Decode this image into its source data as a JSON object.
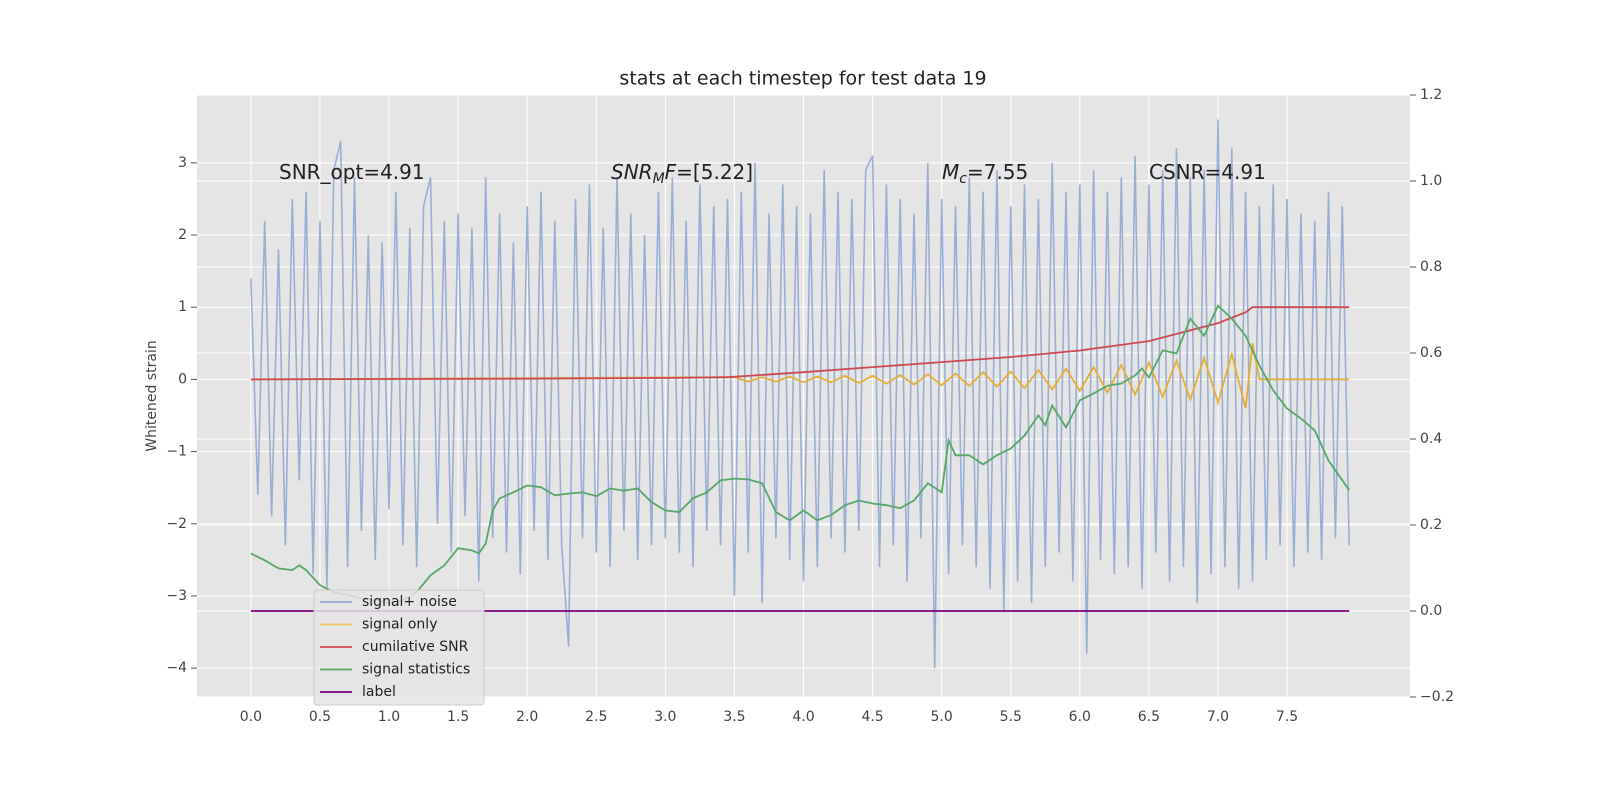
{
  "chart_data": {
    "type": "line",
    "title": "stats at each timestep for test data 19",
    "ylabel": "Whitened strain",
    "xlim": [
      -0.39,
      8.39
    ],
    "ylim": [
      -4.4,
      3.94
    ],
    "y2lim": [
      -0.2,
      1.2
    ],
    "xticks": [
      {
        "value": 0,
        "label": "0.0"
      },
      0.5,
      {
        "value": 1,
        "label": "1.0"
      },
      1.5,
      {
        "value": 2,
        "label": "2.0"
      },
      2.5,
      {
        "value": 3,
        "label": "3.0"
      },
      3.5,
      {
        "value": 4,
        "label": "4.0"
      },
      4.5,
      {
        "value": 5,
        "label": "5.0"
      },
      5.5,
      {
        "value": 6,
        "label": "6.0"
      },
      6.5,
      {
        "value": 7,
        "label": "7.0"
      },
      7.5
    ],
    "yticks": [
      {
        "value": -4,
        "label": "−4"
      },
      {
        "value": -3,
        "label": "−3"
      },
      {
        "value": -2,
        "label": "−2"
      },
      {
        "value": -1,
        "label": "−1"
      },
      0,
      1,
      2,
      3
    ],
    "y2ticks": [
      {
        "value": -0.2,
        "label": "−0.2"
      },
      {
        "value": 0,
        "label": "0.0"
      },
      0.2,
      0.4,
      0.6,
      0.8,
      {
        "value": 1,
        "label": "1.0"
      },
      1.2
    ],
    "grid": true,
    "legend": "lower left",
    "annotations": [
      {
        "parts": [
          {
            "text": "SNR_opt=4.91"
          }
        ]
      },
      {
        "parts": [
          {
            "text": "SNR",
            "italic": true
          },
          {
            "text": "M",
            "italic": true,
            "sub": true
          },
          {
            "text": "F",
            "italic": true
          },
          {
            "text": "=[5.22]"
          }
        ]
      },
      {
        "parts": [
          {
            "text": "M",
            "italic": true
          },
          {
            "text": "c",
            "italic": true,
            "sub": true
          },
          {
            "text": "=7.55"
          }
        ]
      },
      {
        "parts": [
          {
            "text": "CSNR=4.91"
          }
        ]
      }
    ],
    "series": [
      {
        "name": "signal+ noise",
        "color": "#92a8d1",
        "axis": "y",
        "x": [
          0,
          0.05,
          0.1,
          0.15,
          0.2,
          0.25,
          0.3,
          0.35,
          0.4,
          0.45,
          0.5,
          0.55,
          0.6,
          0.65,
          0.7,
          0.75,
          0.8,
          0.85,
          0.9,
          0.95,
          1,
          1.05,
          1.1,
          1.15,
          1.2,
          1.25,
          1.3,
          1.35,
          1.4,
          1.45,
          1.5,
          1.55,
          1.6,
          1.65,
          1.7,
          1.75,
          1.8,
          1.85,
          1.9,
          1.95,
          2,
          2.05,
          2.1,
          2.15,
          2.2,
          2.25,
          2.3,
          2.35,
          2.4,
          2.45,
          2.5,
          2.55,
          2.6,
          2.65,
          2.7,
          2.75,
          2.8,
          2.85,
          2.9,
          2.95,
          3,
          3.05,
          3.1,
          3.15,
          3.2,
          3.25,
          3.3,
          3.35,
          3.4,
          3.45,
          3.5,
          3.55,
          3.6,
          3.65,
          3.7,
          3.75,
          3.8,
          3.85,
          3.9,
          3.95,
          4,
          4.05,
          4.1,
          4.15,
          4.2,
          4.25,
          4.3,
          4.35,
          4.4,
          4.45,
          4.5,
          4.55,
          4.6,
          4.65,
          4.7,
          4.75,
          4.8,
          4.85,
          4.9,
          4.95,
          5,
          5.05,
          5.1,
          5.15,
          5.2,
          5.25,
          5.3,
          5.35,
          5.4,
          5.45,
          5.5,
          5.55,
          5.6,
          5.65,
          5.7,
          5.75,
          5.8,
          5.85,
          5.9,
          5.95,
          6,
          6.05,
          6.1,
          6.15,
          6.2,
          6.25,
          6.3,
          6.35,
          6.4,
          6.45,
          6.5,
          6.55,
          6.6,
          6.65,
          6.7,
          6.75,
          6.8,
          6.85,
          6.9,
          6.95,
          7,
          7.05,
          7.1,
          7.15,
          7.2,
          7.25,
          7.3,
          7.35,
          7.4,
          7.45,
          7.5,
          7.55,
          7.6,
          7.65,
          7.7,
          7.75,
          7.8,
          7.85,
          7.9,
          7.95
        ],
        "values": [
          1.4,
          -1.6,
          2.2,
          -1.9,
          1.8,
          -2.3,
          2.5,
          -1.4,
          2.6,
          -2.7,
          2.2,
          -2.9,
          2.9,
          3.3,
          -2.6,
          2.8,
          -2.1,
          2.0,
          -2.5,
          1.9,
          -1.8,
          2.6,
          -2.3,
          2.1,
          -2.6,
          2.4,
          2.8,
          -2.0,
          2.2,
          -2.4,
          2.3,
          -1.9,
          2.1,
          -2.8,
          2.8,
          -2.2,
          2.3,
          -2.4,
          1.9,
          -2.7,
          2.4,
          -2.1,
          2.6,
          -2.5,
          2.2,
          -2.3,
          -3.7,
          2.5,
          -2.2,
          2.7,
          -2.4,
          2.1,
          -2.6,
          2.8,
          -2.1,
          2.3,
          -2.5,
          2.0,
          -2.3,
          2.6,
          -2.2,
          2.8,
          -2.4,
          2.2,
          -2.6,
          2.7,
          -2.1,
          2.4,
          -2.3,
          2.5,
          -3.0,
          2.6,
          -2.4,
          3.0,
          -3.1,
          2.3,
          -2.2,
          2.7,
          -2.5,
          2.4,
          -2.8,
          2.3,
          -2.6,
          2.9,
          -2.2,
          2.6,
          -2.4,
          2.5,
          -2.1,
          2.9,
          3.1,
          -2.6,
          2.7,
          -2.3,
          2.5,
          -2.8,
          2.3,
          -2.2,
          3.0,
          -4.0,
          2.5,
          -2.7,
          2.4,
          -2.3,
          2.8,
          -2.6,
          2.6,
          -2.9,
          2.9,
          -3.2,
          2.4,
          -2.8,
          2.7,
          -3.1,
          2.5,
          -2.6,
          3.0,
          -2.4,
          2.6,
          -2.8,
          2.7,
          -3.8,
          2.9,
          -2.5,
          2.6,
          -2.7,
          2.8,
          -2.6,
          3.1,
          -2.9,
          2.7,
          -2.4,
          2.9,
          -2.8,
          3.2,
          -2.6,
          2.8,
          -3.1,
          2.9,
          -2.7,
          3.6,
          -2.6,
          3.2,
          -2.9,
          2.6,
          -2.8,
          2.4,
          -2.5,
          2.7,
          -2.3,
          2.5,
          -2.6,
          2.3,
          -2.4,
          2.2,
          -2.5,
          2.6,
          -2.2,
          2.4,
          -2.3
        ]
      },
      {
        "name": "signal only",
        "color": "#e5ae38",
        "legend_color": "#f2c75c",
        "axis": "y",
        "x": [
          0,
          3.5,
          3.6,
          3.7,
          3.8,
          3.9,
          4,
          4.1,
          4.2,
          4.3,
          4.4,
          4.5,
          4.6,
          4.7,
          4.8,
          4.9,
          5,
          5.1,
          5.2,
          5.3,
          5.4,
          5.5,
          5.6,
          5.7,
          5.8,
          5.9,
          6,
          6.1,
          6.2,
          6.3,
          6.4,
          6.5,
          6.6,
          6.7,
          6.8,
          6.9,
          7,
          7.1,
          7.2,
          7.25,
          7.3,
          7.95
        ],
        "values": [
          0,
          0.03,
          -0.03,
          0.03,
          -0.03,
          0.04,
          -0.04,
          0.04,
          -0.04,
          0.05,
          -0.05,
          0.05,
          -0.06,
          0.06,
          -0.07,
          0.07,
          -0.08,
          0.08,
          -0.09,
          0.1,
          -0.1,
          0.11,
          -0.12,
          0.13,
          -0.14,
          0.15,
          -0.16,
          0.17,
          -0.18,
          0.2,
          -0.21,
          0.23,
          -0.24,
          0.26,
          -0.28,
          0.3,
          -0.32,
          0.35,
          -0.4,
          0.5,
          0,
          0
        ]
      },
      {
        "name": "cumilative SNR",
        "color": "#d0474f",
        "axis": "y",
        "x": [
          0,
          1,
          2,
          3,
          3.45,
          4,
          4.5,
          5,
          5.5,
          6,
          6.5,
          7,
          7.2,
          7.25,
          7.95
        ],
        "values": [
          0,
          0.005,
          0.01,
          0.02,
          0.03,
          0.1,
          0.17,
          0.24,
          0.31,
          0.4,
          0.53,
          0.78,
          0.93,
          1.0,
          1.0
        ]
      },
      {
        "name": "signal statistics",
        "color": "#55a868",
        "axis": "y2",
        "x": [
          0,
          0.1,
          0.2,
          0.3,
          0.35,
          0.4,
          0.5,
          0.6,
          0.7,
          0.8,
          0.9,
          1,
          1.1,
          1.2,
          1.3,
          1.4,
          1.5,
          1.6,
          1.65,
          1.7,
          1.75,
          1.8,
          1.9,
          2,
          2.1,
          2.2,
          2.3,
          2.4,
          2.5,
          2.6,
          2.7,
          2.8,
          2.9,
          3,
          3.1,
          3.2,
          3.3,
          3.4,
          3.5,
          3.6,
          3.7,
          3.8,
          3.9,
          4,
          4.1,
          4.2,
          4.3,
          4.4,
          4.5,
          4.6,
          4.7,
          4.8,
          4.9,
          5,
          5.05,
          5.1,
          5.2,
          5.3,
          5.4,
          5.5,
          5.6,
          5.7,
          5.75,
          5.8,
          5.9,
          6,
          6.1,
          6.2,
          6.3,
          6.4,
          6.45,
          6.5,
          6.6,
          6.7,
          6.8,
          6.9,
          7,
          7.1,
          7.2,
          7.3,
          7.4,
          7.5,
          7.6,
          7.7,
          7.8,
          7.95
        ],
        "values": [
          0.134,
          0.118,
          0.099,
          0.095,
          0.106,
          0.095,
          0.06,
          0.044,
          0.037,
          0.03,
          0.025,
          0.018,
          0.025,
          0.044,
          0.083,
          0.106,
          0.146,
          0.141,
          0.134,
          0.157,
          0.234,
          0.262,
          0.276,
          0.292,
          0.288,
          0.269,
          0.273,
          0.276,
          0.267,
          0.285,
          0.28,
          0.285,
          0.253,
          0.234,
          0.23,
          0.262,
          0.276,
          0.304,
          0.308,
          0.306,
          0.297,
          0.23,
          0.211,
          0.234,
          0.211,
          0.223,
          0.246,
          0.257,
          0.25,
          0.246,
          0.239,
          0.257,
          0.297,
          0.276,
          0.397,
          0.362,
          0.362,
          0.341,
          0.362,
          0.378,
          0.408,
          0.455,
          0.432,
          0.478,
          0.427,
          0.49,
          0.506,
          0.524,
          0.529,
          0.548,
          0.564,
          0.543,
          0.606,
          0.599,
          0.68,
          0.64,
          0.71,
          0.68,
          0.64,
          0.571,
          0.513,
          0.471,
          0.448,
          0.42,
          0.35,
          0.281
        ]
      },
      {
        "name": "label",
        "color": "#800080",
        "axis": "y2",
        "x": [
          0,
          7.95
        ],
        "values": [
          0,
          0
        ]
      }
    ]
  }
}
